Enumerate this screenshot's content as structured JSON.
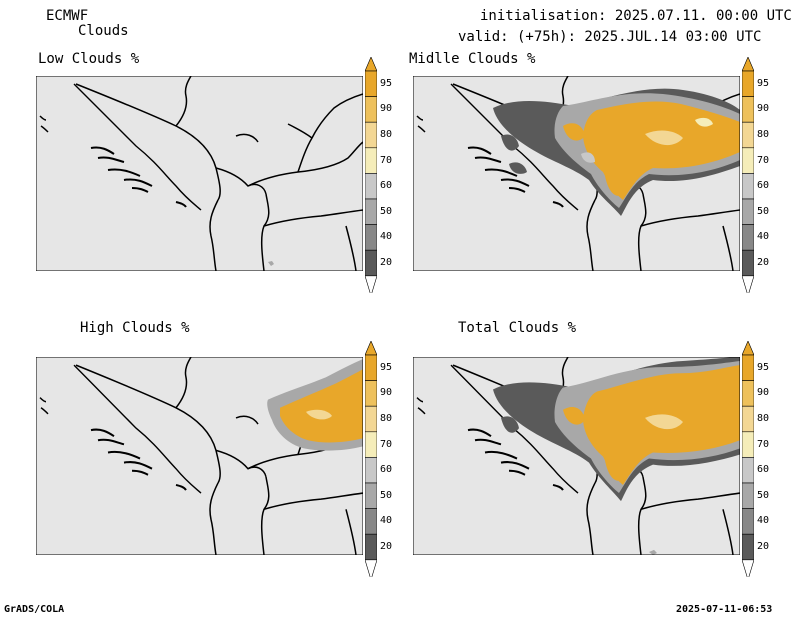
{
  "header": {
    "model": "ECMWF",
    "product": "Clouds",
    "initialisation": "initialisation: 2025.07.11. 00:00 UTC",
    "valid": "valid: (+75h): 2025.JUL.14 03:00 UTC"
  },
  "panels": [
    {
      "title": "Low Clouds %"
    },
    {
      "title": "Midlle Clouds %"
    },
    {
      "title": "High Clouds %"
    },
    {
      "title": "Total Clouds %"
    }
  ],
  "colorbar": {
    "ticks": [
      "95",
      "90",
      "80",
      "70",
      "60",
      "50",
      "40",
      "20"
    ],
    "colors": [
      "#e8a72a",
      "#eec15c",
      "#f3d794",
      "#f5edb9",
      "#c8c8c8",
      "#a8a8a8",
      "#888888",
      "#5a5a5a"
    ],
    "under_color": "#ffffff",
    "over_color": "#e8a72a"
  },
  "colors": {
    "map_background": "#e6e6e6",
    "border": "#000000"
  },
  "footer": {
    "left": "GrADS/COLA",
    "right": "2025-07-11-06:53"
  }
}
